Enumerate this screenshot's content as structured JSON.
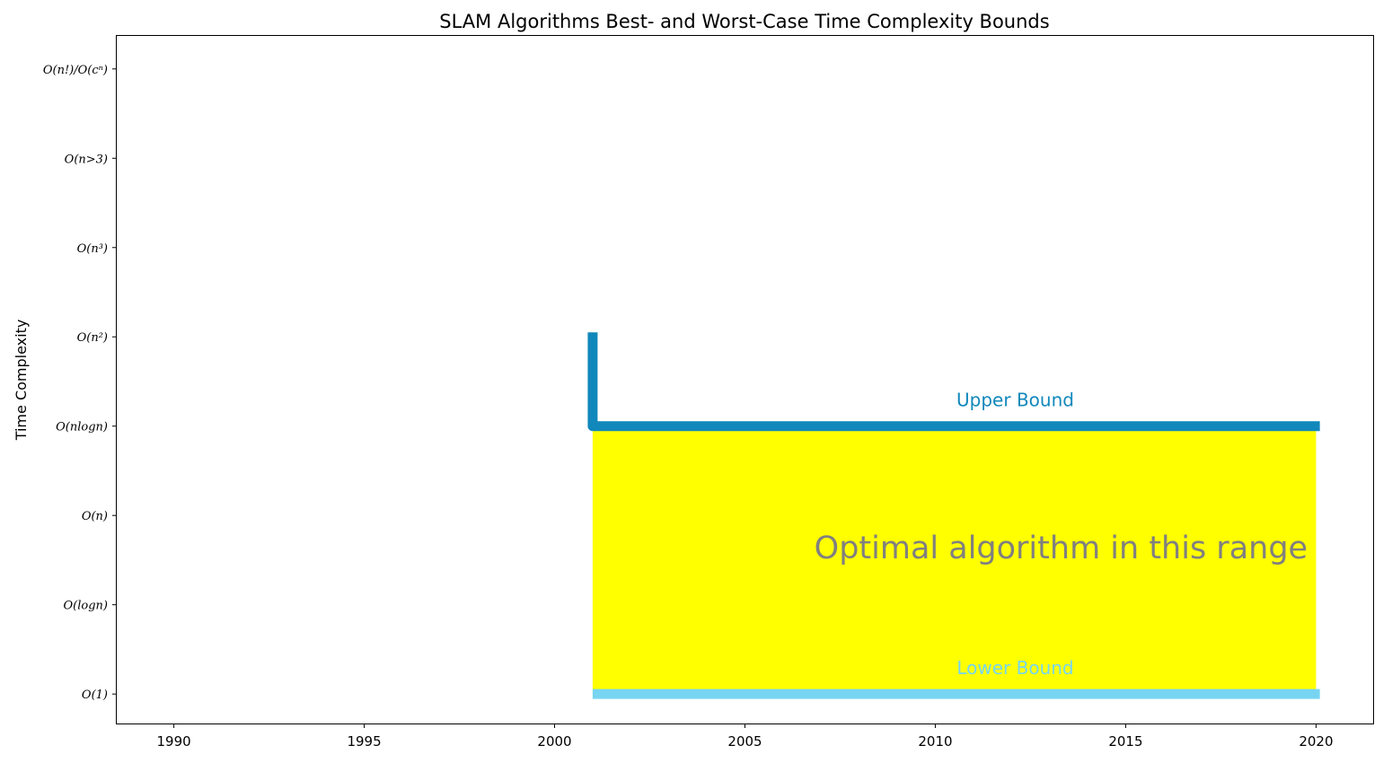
{
  "chart_data": {
    "type": "line",
    "title": "SLAM Algorithms Best- and Worst-Case Time Complexity Bounds",
    "xlabel": "",
    "ylabel": "Time Complexity",
    "xlim": [
      1988.5,
      2021.5
    ],
    "ylim": [
      -0.33,
      7.37
    ],
    "x_ticks": [
      1990,
      1995,
      2000,
      2005,
      2010,
      2015,
      2020
    ],
    "y_ticks": [
      {
        "value": 0,
        "label": "O(1)"
      },
      {
        "value": 1,
        "label": "O(logn)"
      },
      {
        "value": 2,
        "label": "O(n)"
      },
      {
        "value": 3,
        "label": "O(nlogn)"
      },
      {
        "value": 4,
        "label": "O(n²)"
      },
      {
        "value": 5,
        "label": "O(n³)"
      },
      {
        "value": 6,
        "label": "O(n>3)"
      },
      {
        "value": 7,
        "label": "O(n!)/O(cⁿ)"
      }
    ],
    "grid": false,
    "series": [
      {
        "name": "Upper Bound",
        "color": "#1188bb",
        "points": [
          [
            2001,
            4.05
          ],
          [
            2001,
            3
          ],
          [
            2020.1,
            3
          ]
        ]
      },
      {
        "name": "Lower Bound",
        "color": "#77d5f2",
        "points": [
          [
            2001,
            0
          ],
          [
            2020.1,
            0
          ]
        ]
      }
    ],
    "fill": {
      "x": [
        2001,
        2020
      ],
      "y": [
        0,
        3
      ],
      "color": "#ffff00"
    },
    "annotations": [
      {
        "text": "Upper Bound",
        "x": 2012.1,
        "y": 3.28,
        "color": "#1188bb"
      },
      {
        "text": "Lower Bound",
        "x": 2012.1,
        "y": 0.28,
        "color": "#77d5f2"
      },
      {
        "text": "Optimal algorithm in this range",
        "x": 2013.3,
        "y": 1.62,
        "color": "#808080"
      }
    ]
  }
}
